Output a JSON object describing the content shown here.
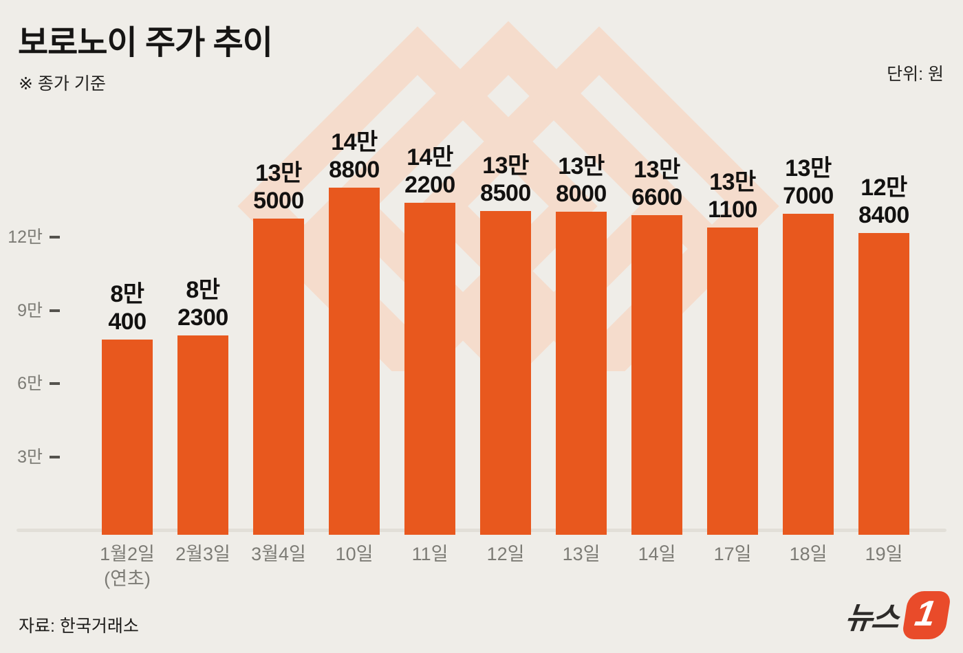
{
  "header": {
    "title": "보로노이 주가 추이",
    "subtitle": "※ 종가 기준",
    "unit": "단위: 원"
  },
  "footer": {
    "source": "자료: 한국거래소",
    "logo_text": "뉴스",
    "logo_mark": "1"
  },
  "colors": {
    "background": "#efede8",
    "bar": "#e8581e",
    "watermark": "#f5dccc",
    "axis_text": "#7c7b75",
    "value_text": "#121110",
    "logo_orange": "#e94b2a"
  },
  "chart_data": {
    "type": "bar",
    "title": "보로노이 주가 추이",
    "note": "종가 기준",
    "unit": "원",
    "source": "한국거래소",
    "categories": [
      "1월2일 (연초)",
      "2월3일",
      "3월4일",
      "10일",
      "11일",
      "12일",
      "13일",
      "14일",
      "17일",
      "18일",
      "19일"
    ],
    "values": [
      80400,
      82300,
      135000,
      148800,
      142200,
      138500,
      138000,
      136600,
      131100,
      137000,
      128400
    ],
    "bar_labels": [
      [
        "8만",
        "400"
      ],
      [
        "8만",
        "2300"
      ],
      [
        "13만",
        "5000"
      ],
      [
        "14만",
        "8800"
      ],
      [
        "14만",
        "2200"
      ],
      [
        "13만",
        "8500"
      ],
      [
        "13만",
        "8000"
      ],
      [
        "13만",
        "6600"
      ],
      [
        "13만",
        "1100"
      ],
      [
        "13만",
        "7000"
      ],
      [
        "12만",
        "8400"
      ]
    ],
    "x_labels": [
      [
        "1월2일",
        "(연초)"
      ],
      [
        "2월3일"
      ],
      [
        "3월4일"
      ],
      [
        "10일"
      ],
      [
        "11일"
      ],
      [
        "12일"
      ],
      [
        "13일"
      ],
      [
        "14일"
      ],
      [
        "17일"
      ],
      [
        "18일"
      ],
      [
        "19일"
      ]
    ],
    "yticks": {
      "values": [
        120000,
        90000,
        60000,
        30000
      ],
      "labels": [
        "12만",
        "9만",
        "6만",
        "3만"
      ]
    },
    "ylim": [
      0,
      150000
    ],
    "grid": false,
    "legend": null
  }
}
